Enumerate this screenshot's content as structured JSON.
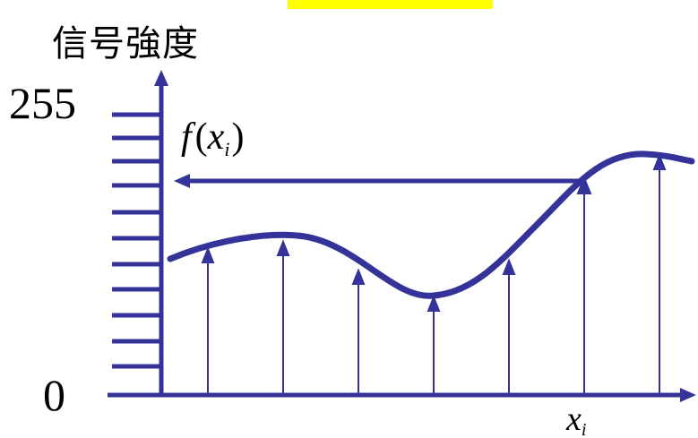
{
  "highlight_color": "#ffff00",
  "line_color": "#333399",
  "y_axis_label": "信号強度",
  "y_max_label": "255",
  "y_min_label": "0",
  "function_label": {
    "f": "f",
    "open": "(",
    "x": "x",
    "sub": "i",
    "close": ")"
  },
  "x_axis_label": {
    "x": "x",
    "sub": "i"
  }
}
